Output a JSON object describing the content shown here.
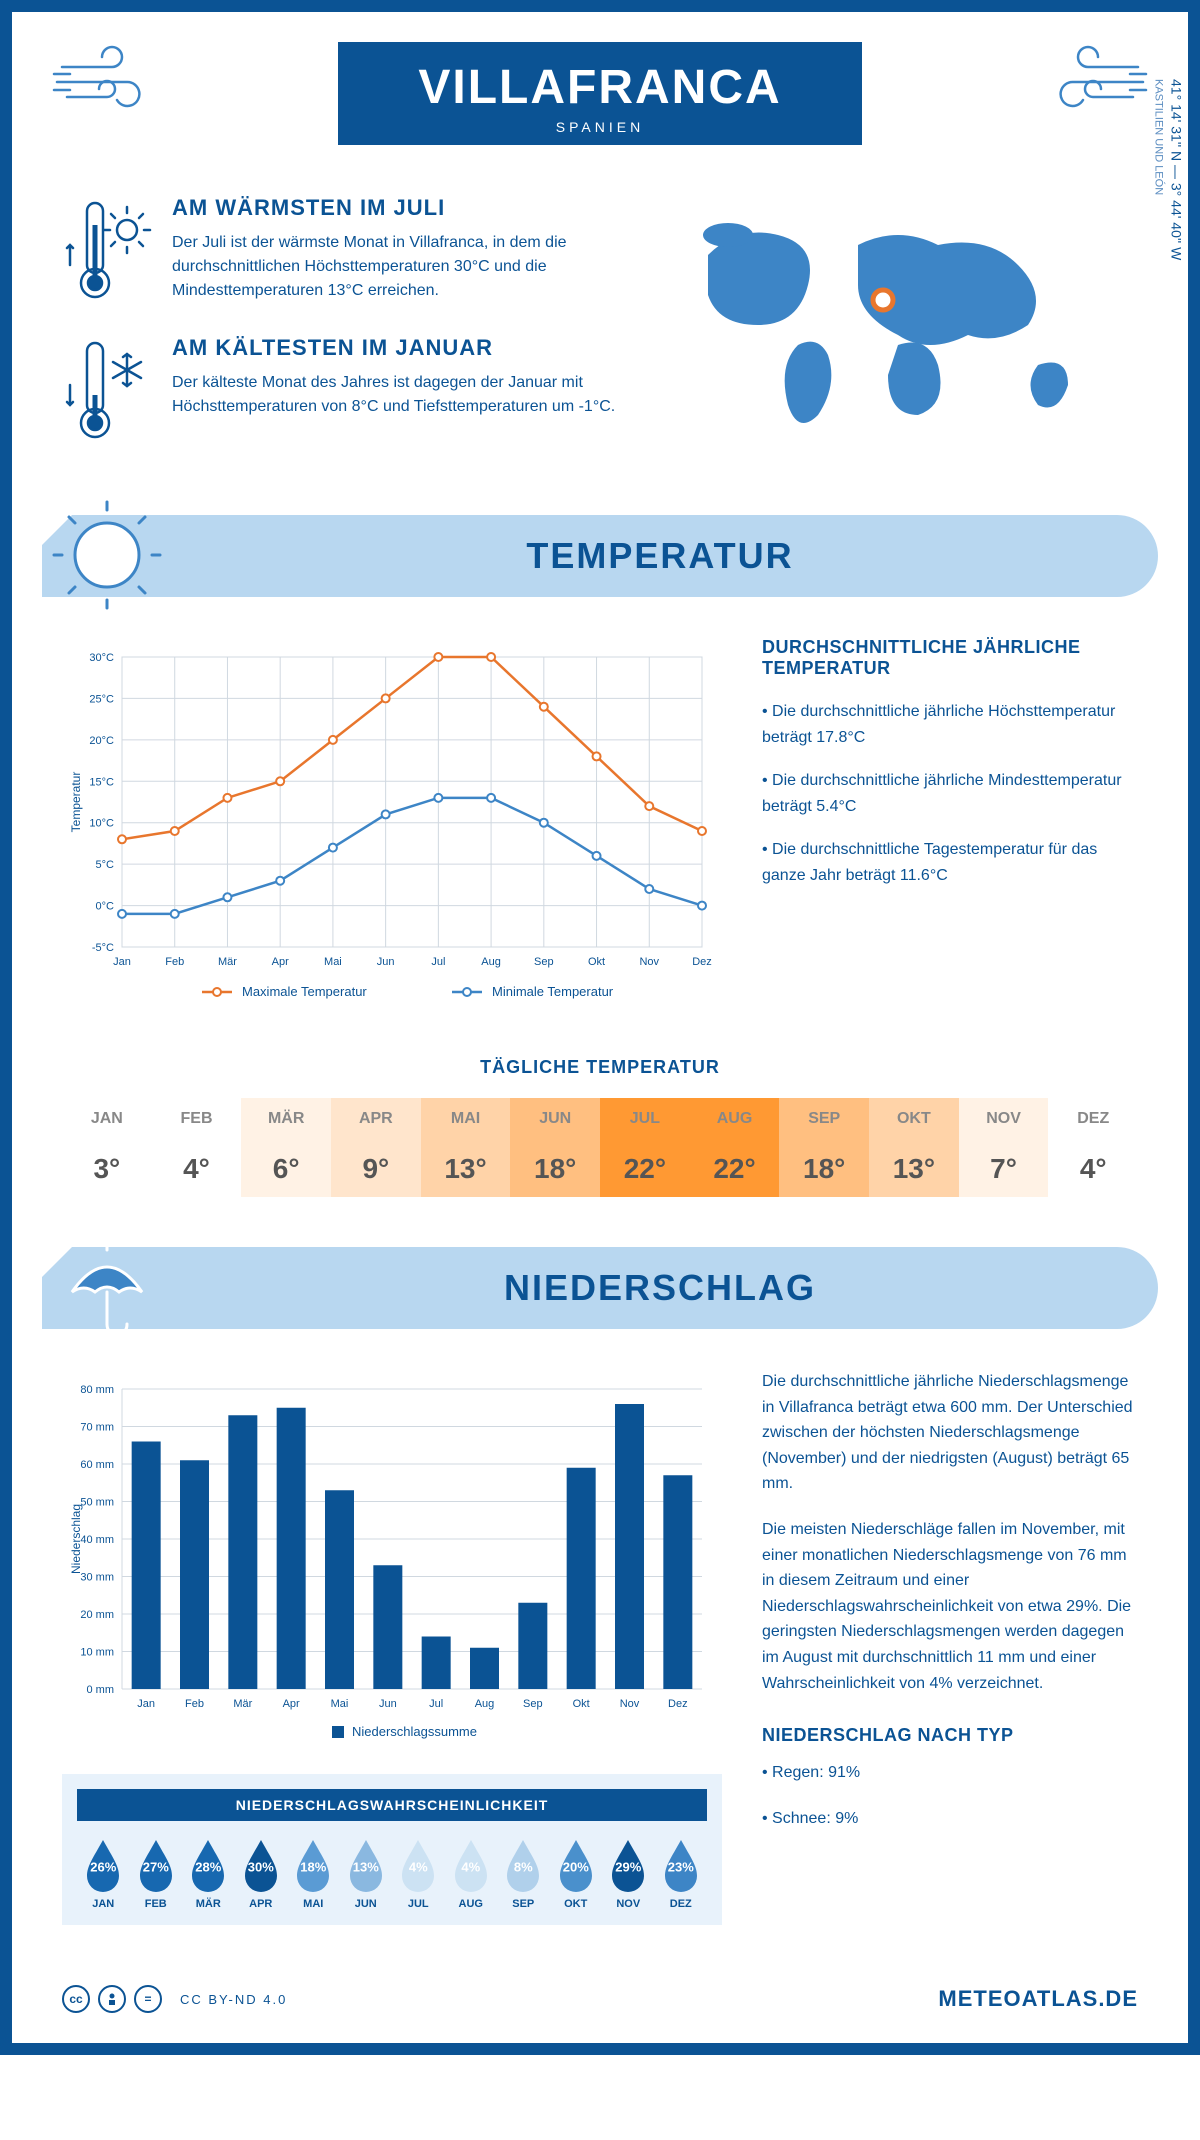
{
  "header": {
    "title": "VILLAFRANCA",
    "subtitle": "SPANIEN"
  },
  "intro": {
    "warm": {
      "title": "AM WÄRMSTEN IM JULI",
      "text": "Der Juli ist der wärmste Monat in Villafranca, in dem die durchschnittlichen Höchsttemperaturen 30°C und die Mindesttemperaturen 13°C erreichen."
    },
    "cold": {
      "title": "AM KÄLTESTEN IM JANUAR",
      "text": "Der kälteste Monat des Jahres ist dagegen der Januar mit Höchsttemperaturen von 8°C und Tiefsttemperaturen um -1°C."
    },
    "coords": "41° 14' 31'' N — 3° 44' 40'' W",
    "region": "KASTILIEN UND LEÓN"
  },
  "temp_section": {
    "banner": "TEMPERATUR",
    "chart": {
      "months": [
        "Jan",
        "Feb",
        "Mär",
        "Apr",
        "Mai",
        "Jun",
        "Jul",
        "Aug",
        "Sep",
        "Okt",
        "Nov",
        "Dez"
      ],
      "max_series": {
        "label": "Maximale Temperatur",
        "color": "#e8762d",
        "values": [
          8,
          9,
          13,
          15,
          20,
          25,
          30,
          30,
          24,
          18,
          12,
          9
        ]
      },
      "min_series": {
        "label": "Minimale Temperatur",
        "color": "#3d85c6",
        "values": [
          -1,
          -1,
          1,
          3,
          7,
          11,
          13,
          13,
          10,
          6,
          2,
          0
        ]
      },
      "ylabel": "Temperatur",
      "ymin": -5,
      "ymax": 30,
      "ystep": 5,
      "grid_color": "#d0d8e0",
      "background": "#ffffff"
    },
    "info": {
      "title": "DURCHSCHNITTLICHE JÄHRLICHE TEMPERATUR",
      "bullets": [
        "• Die durchschnittliche jährliche Höchsttemperatur beträgt 17.8°C",
        "• Die durchschnittliche jährliche Mindesttemperatur beträgt 5.4°C",
        "• Die durchschnittliche Tagestemperatur für das ganze Jahr beträgt 11.6°C"
      ]
    }
  },
  "daily": {
    "title": "TÄGLICHE TEMPERATUR",
    "months": [
      "JAN",
      "FEB",
      "MÄR",
      "APR",
      "MAI",
      "JUN",
      "JUL",
      "AUG",
      "SEP",
      "OKT",
      "NOV",
      "DEZ"
    ],
    "temps": [
      "3°",
      "4°",
      "6°",
      "9°",
      "13°",
      "18°",
      "22°",
      "22°",
      "18°",
      "13°",
      "7°",
      "4°"
    ],
    "colors": [
      "#ffffff",
      "#ffffff",
      "#fff2e5",
      "#ffe5cc",
      "#ffd3a8",
      "#ffbf80",
      "#ff9933",
      "#ff9933",
      "#ffbf80",
      "#ffd3a8",
      "#fff2e5",
      "#ffffff"
    ]
  },
  "precip_section": {
    "banner": "NIEDERSCHLAG",
    "chart": {
      "months": [
        "Jan",
        "Feb",
        "Mär",
        "Apr",
        "Mai",
        "Jun",
        "Jul",
        "Aug",
        "Sep",
        "Okt",
        "Nov",
        "Dez"
      ],
      "values": [
        66,
        61,
        73,
        75,
        53,
        33,
        14,
        11,
        23,
        59,
        76,
        57
      ],
      "ylabel": "Niederschlag",
      "legend": "Niederschlagssumme",
      "ymin": 0,
      "ymax": 80,
      "ystep": 10,
      "bar_color": "#0b5394",
      "grid_color": "#d0d8e0",
      "bar_width": 0.6
    },
    "text1": "Die durchschnittliche jährliche Niederschlagsmenge in Villafranca beträgt etwa 600 mm. Der Unterschied zwischen der höchsten Niederschlagsmenge (November) und der niedrigsten (August) beträgt 65 mm.",
    "text2": "Die meisten Niederschläge fallen im November, mit einer monatlichen Niederschlagsmenge von 76 mm in diesem Zeitraum und einer Niederschlagswahrscheinlichkeit von etwa 29%. Die geringsten Niederschlagsmengen werden dagegen im August mit durchschnittlich 11 mm und einer Wahrscheinlichkeit von 4% verzeichnet.",
    "type_title": "NIEDERSCHLAG NACH TYP",
    "type_bullets": [
      "• Regen: 91%",
      "• Schnee: 9%"
    ],
    "prob": {
      "title": "NIEDERSCHLAGSWAHRSCHEINLICHKEIT",
      "months": [
        "JAN",
        "FEB",
        "MÄR",
        "APR",
        "MAI",
        "JUN",
        "JUL",
        "AUG",
        "SEP",
        "OKT",
        "NOV",
        "DEZ"
      ],
      "values": [
        "26%",
        "27%",
        "28%",
        "30%",
        "18%",
        "13%",
        "4%",
        "4%",
        "8%",
        "20%",
        "29%",
        "23%"
      ],
      "colors": [
        "#1768b0",
        "#1768b0",
        "#1768b0",
        "#0b5394",
        "#5a9bd4",
        "#8ab8e0",
        "#cce2f3",
        "#cce2f3",
        "#b0d0eb",
        "#4a90cc",
        "#0b5394",
        "#3d85c6"
      ]
    }
  },
  "footer": {
    "license": "CC BY-ND 4.0",
    "site": "METEOATLAS.DE"
  }
}
